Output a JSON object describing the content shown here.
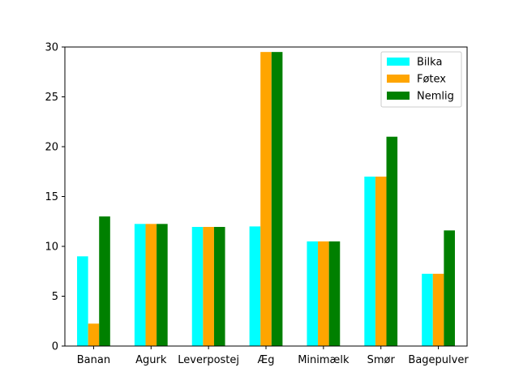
{
  "chart_data": {
    "type": "bar",
    "title": "",
    "xlabel": "",
    "ylabel": "",
    "ylim": [
      0,
      30
    ],
    "yticks": [
      0,
      5,
      10,
      15,
      20,
      25,
      30
    ],
    "grid": false,
    "legend_position": "top-right",
    "categories": [
      "Banan",
      "Agurk",
      "Leverpostej",
      "Æg",
      "Minimælk",
      "Smør",
      "Bagepulver"
    ],
    "series": [
      {
        "name": "Bilka",
        "color": "#00ffff",
        "values": [
          9.0,
          12.25,
          11.95,
          12.0,
          10.5,
          17.0,
          7.25
        ]
      },
      {
        "name": "Føtex",
        "color": "#ffa500",
        "values": [
          2.25,
          12.25,
          11.95,
          29.5,
          10.5,
          17.0,
          7.25
        ]
      },
      {
        "name": "Nemlig",
        "color": "#008000",
        "values": [
          13.0,
          12.25,
          11.95,
          29.5,
          10.5,
          21.0,
          11.6
        ]
      }
    ]
  }
}
